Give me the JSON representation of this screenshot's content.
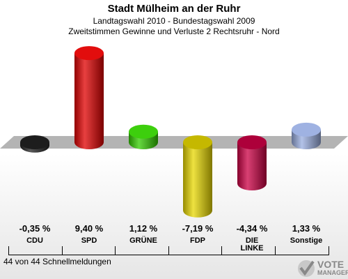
{
  "header": {
    "title": "Stadt Mülheim an der Ruhr",
    "subtitle1": "Landtagswahl 2010 - Bundestagswahl 2009",
    "subtitle2": "Zweitstimmen Gewinne und Verluste 2 Rechtsruhr - Nord"
  },
  "footer": {
    "text": "44 von 44 Schnellmeldungen"
  },
  "logo": {
    "line1": "VOTE",
    "line2": "MANAGER"
  },
  "chart_data": {
    "type": "bar",
    "categories": [
      "CDU",
      "SPD",
      "GRÜNE",
      "FDP",
      "DIE LINKE",
      "Sonstige"
    ],
    "category_lines": [
      [
        "CDU"
      ],
      [
        "SPD"
      ],
      [
        "GRÜNE"
      ],
      [
        "FDP"
      ],
      [
        "DIE",
        "LINKE"
      ],
      [
        "Sonstige"
      ]
    ],
    "values": [
      -0.35,
      9.4,
      1.12,
      -7.19,
      -4.34,
      1.33
    ],
    "value_labels": [
      "-0,35 %",
      "9,40 %",
      "1,12 %",
      "-7,19 %",
      "-4,34 %",
      "1,33 %"
    ],
    "colors": [
      "#222222",
      "#e00000",
      "#33cc00",
      "#e8d800",
      "#cc0044",
      "#9aaee0"
    ],
    "baseline": 0
  }
}
